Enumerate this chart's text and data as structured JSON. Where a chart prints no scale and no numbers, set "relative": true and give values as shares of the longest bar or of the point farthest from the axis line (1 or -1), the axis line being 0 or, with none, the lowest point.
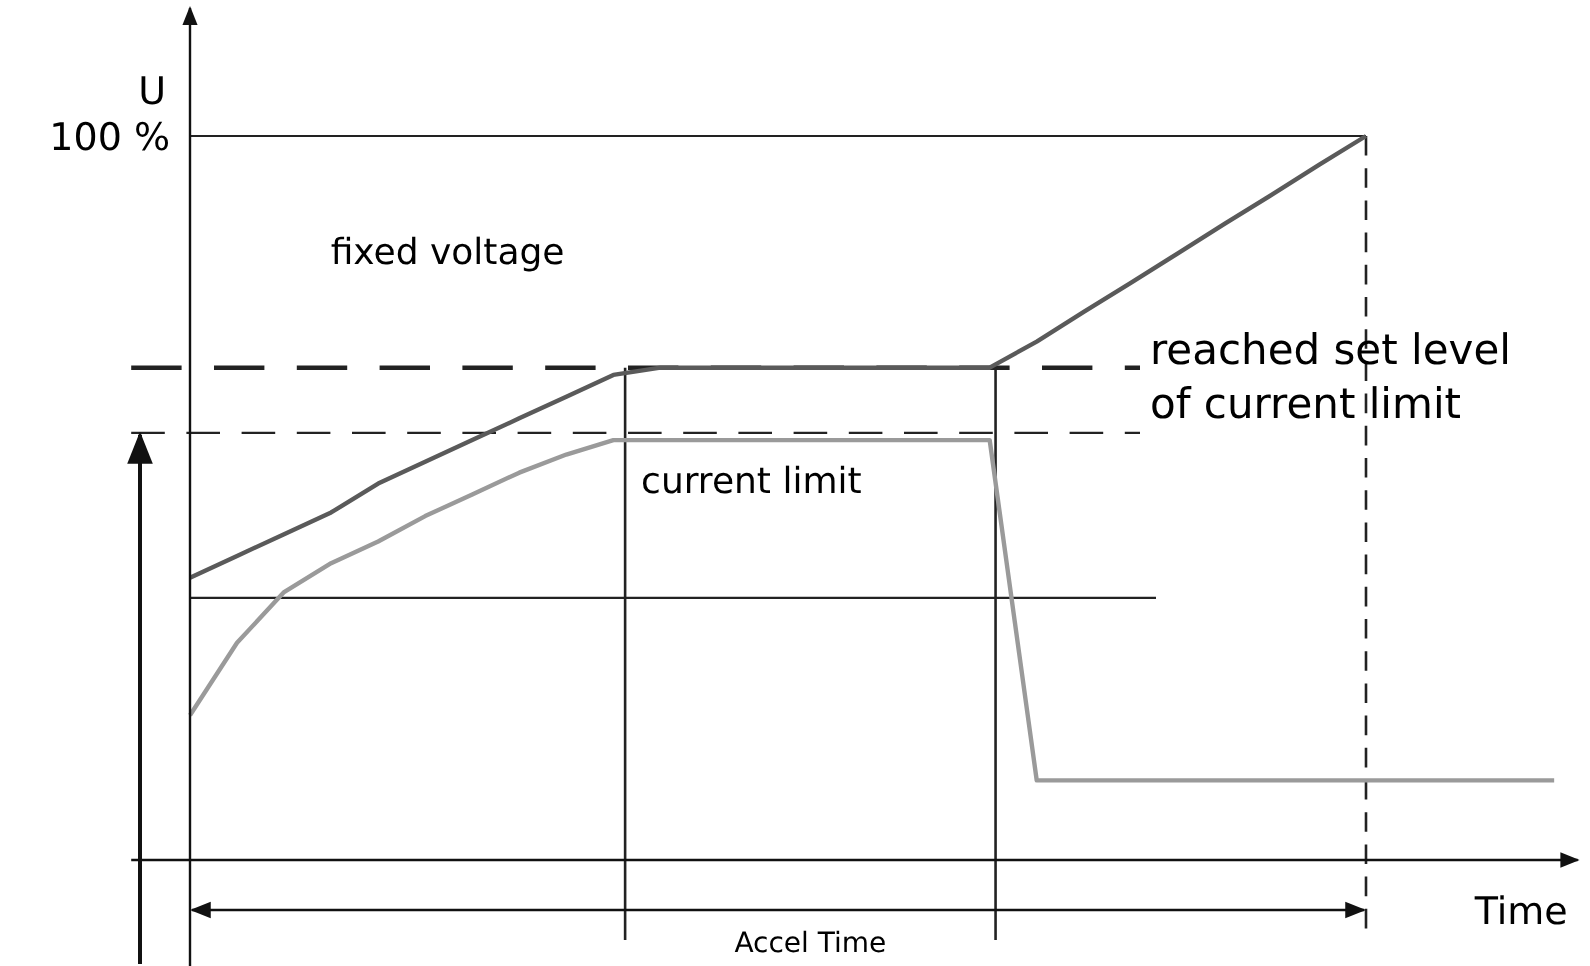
{
  "chart_data": {
    "type": "line",
    "relative": true,
    "xlabel": "Time",
    "ylabel": "U",
    "marker": "none",
    "categories": [
      null,
      null,
      null,
      null,
      null,
      null,
      null,
      null,
      null,
      null,
      null,
      null,
      null,
      null,
      null,
      null,
      null,
      null,
      null,
      null,
      null,
      null,
      null,
      null,
      null,
      null,
      null,
      null,
      null,
      null
    ],
    "series": [
      {
        "color": "#5a5a5a",
        "values": [
          0.39,
          0.42,
          0.45,
          0.48,
          0.52,
          0.55,
          0.58,
          0.61,
          0.64,
          0.67,
          0.68,
          0.68,
          0.68,
          0.68,
          0.68,
          0.68,
          0.68,
          0.68,
          0.716,
          0.757,
          0.797,
          0.838,
          0.879,
          0.919,
          0.96,
          1.0,
          null,
          null,
          null,
          null
        ]
      },
      {
        "color": "#9a9a9a",
        "values": [
          0.2,
          0.3,
          0.37,
          0.41,
          0.44,
          0.475,
          0.505,
          0.535,
          0.56,
          0.58,
          0.58,
          0.58,
          0.58,
          0.58,
          0.58,
          0.58,
          0.58,
          0.58,
          0.11,
          0.11,
          0.11,
          0.11,
          0.11,
          0.11,
          0.11,
          0.11,
          0.11,
          0.11,
          0.11,
          0.11
        ]
      }
    ],
    "ref_lines": [
      {
        "axis": "y",
        "value": 1,
        "label": "100 %",
        "color": "#222222",
        "line_style": "solid"
      },
      {
        "axis": "y",
        "value": 0.68,
        "color": "#222222",
        "line_style": "dashed"
      },
      {
        "axis": "y",
        "value": 0.59,
        "color": "#222222",
        "line_style": "dashed"
      },
      {
        "axis": "y",
        "value": 0.362,
        "color": "#222222",
        "line_style": "solid"
      }
    ],
    "annotations": [
      "fixed voltage",
      "current limit",
      "reached set level of current limit",
      "Accel Time"
    ]
  }
}
